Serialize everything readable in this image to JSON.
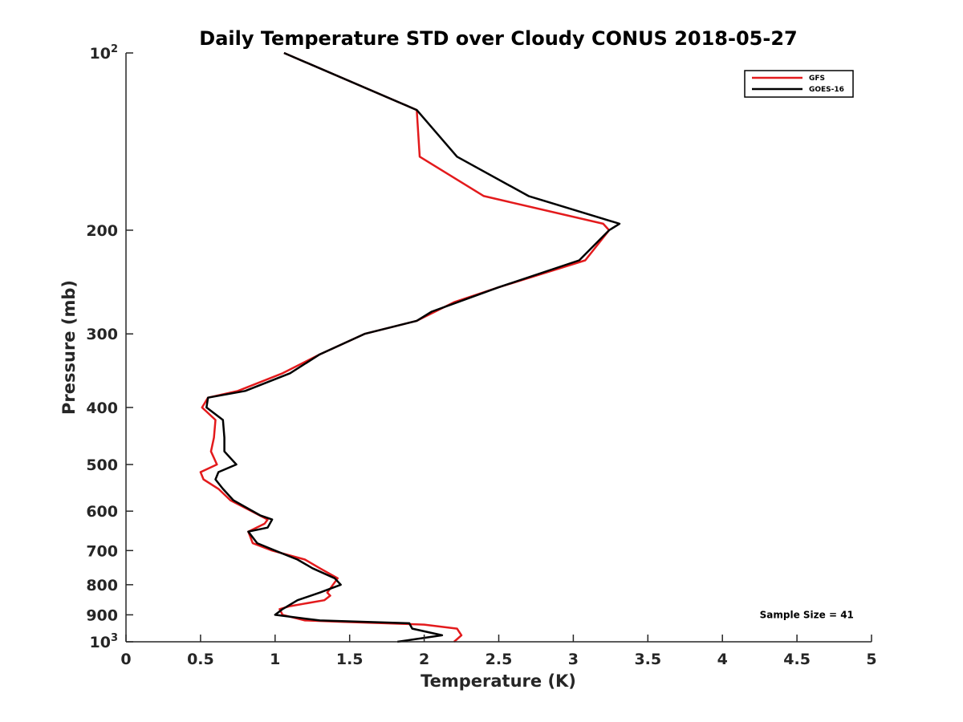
{
  "chart_data": {
    "type": "line",
    "title": "Daily Temperature STD over Cloudy CONUS 2018-05-27",
    "xlabel": "Temperature (K)",
    "ylabel": "Pressure (mb)",
    "xlim": [
      0,
      5
    ],
    "ylim": [
      100,
      1000
    ],
    "yscale": "log",
    "y_reversed": true,
    "grid": false,
    "legend_position": "top-right",
    "x_ticks": [
      0,
      0.5,
      1,
      1.5,
      2,
      2.5,
      3,
      3.5,
      4,
      4.5,
      5
    ],
    "x_tick_labels": [
      "0",
      "0.5",
      "1",
      "1.5",
      "2",
      "2.5",
      "3",
      "3.5",
      "4",
      "4.5",
      "5"
    ],
    "y_ticks": [
      100,
      200,
      300,
      400,
      500,
      600,
      700,
      800,
      900,
      1000
    ],
    "y_tick_labels": [
      {
        "base": "10",
        "exp": "2"
      },
      {
        "base": "200",
        "exp": ""
      },
      {
        "base": "300",
        "exp": ""
      },
      {
        "base": "400",
        "exp": ""
      },
      {
        "base": "500",
        "exp": ""
      },
      {
        "base": "600",
        "exp": ""
      },
      {
        "base": "700",
        "exp": ""
      },
      {
        "base": "800",
        "exp": ""
      },
      {
        "base": "900",
        "exp": ""
      },
      {
        "base": "10",
        "exp": "3"
      }
    ],
    "series": [
      {
        "name": "GFS",
        "color": "#e31a1c",
        "points": [
          [
            1.06,
            100
          ],
          [
            1.95,
            125
          ],
          [
            1.97,
            150
          ],
          [
            2.4,
            175
          ],
          [
            3.2,
            195
          ],
          [
            3.24,
            200
          ],
          [
            3.08,
            225
          ],
          [
            2.5,
            250
          ],
          [
            2.2,
            265
          ],
          [
            1.95,
            285
          ],
          [
            1.6,
            300
          ],
          [
            1.3,
            325
          ],
          [
            1.05,
            350
          ],
          [
            0.75,
            375
          ],
          [
            0.55,
            385
          ],
          [
            0.51,
            400
          ],
          [
            0.6,
            420
          ],
          [
            0.59,
            450
          ],
          [
            0.57,
            475
          ],
          [
            0.61,
            500
          ],
          [
            0.5,
            515
          ],
          [
            0.52,
            530
          ],
          [
            0.62,
            550
          ],
          [
            0.7,
            575
          ],
          [
            0.95,
            620
          ],
          [
            0.93,
            630
          ],
          [
            0.82,
            650
          ],
          [
            0.85,
            680
          ],
          [
            0.98,
            700
          ],
          [
            1.2,
            725
          ],
          [
            1.3,
            750
          ],
          [
            1.42,
            780
          ],
          [
            1.35,
            825
          ],
          [
            1.37,
            835
          ],
          [
            1.33,
            850
          ],
          [
            1.1,
            870
          ],
          [
            1.03,
            880
          ],
          [
            1.05,
            900
          ],
          [
            1.2,
            920
          ],
          [
            1.45,
            925
          ],
          [
            2.0,
            935
          ],
          [
            2.22,
            950
          ],
          [
            2.25,
            975
          ],
          [
            2.2,
            1000
          ]
        ]
      },
      {
        "name": "GOES-16",
        "color": "#000000",
        "points": [
          [
            1.06,
            100
          ],
          [
            1.95,
            125
          ],
          [
            2.22,
            150
          ],
          [
            2.7,
            175
          ],
          [
            3.31,
            195
          ],
          [
            3.24,
            200
          ],
          [
            3.04,
            225
          ],
          [
            2.5,
            250
          ],
          [
            2.05,
            275
          ],
          [
            1.95,
            285
          ],
          [
            1.6,
            300
          ],
          [
            1.3,
            325
          ],
          [
            1.1,
            350
          ],
          [
            0.8,
            375
          ],
          [
            0.55,
            385
          ],
          [
            0.54,
            400
          ],
          [
            0.65,
            420
          ],
          [
            0.66,
            450
          ],
          [
            0.66,
            475
          ],
          [
            0.74,
            500
          ],
          [
            0.62,
            515
          ],
          [
            0.6,
            530
          ],
          [
            0.65,
            550
          ],
          [
            0.72,
            575
          ],
          [
            0.9,
            610
          ],
          [
            0.98,
            620
          ],
          [
            0.95,
            640
          ],
          [
            0.82,
            650
          ],
          [
            0.88,
            680
          ],
          [
            1.0,
            700
          ],
          [
            1.15,
            725
          ],
          [
            1.25,
            750
          ],
          [
            1.4,
            780
          ],
          [
            1.44,
            800
          ],
          [
            1.3,
            825
          ],
          [
            1.15,
            850
          ],
          [
            1.05,
            880
          ],
          [
            1.0,
            900
          ],
          [
            1.3,
            920
          ],
          [
            1.9,
            930
          ],
          [
            1.92,
            950
          ],
          [
            2.12,
            975
          ],
          [
            1.82,
            1000
          ]
        ]
      }
    ],
    "annotations": [
      {
        "text": "Sample Size = 41",
        "x": 4.25,
        "y": 900
      }
    ]
  }
}
